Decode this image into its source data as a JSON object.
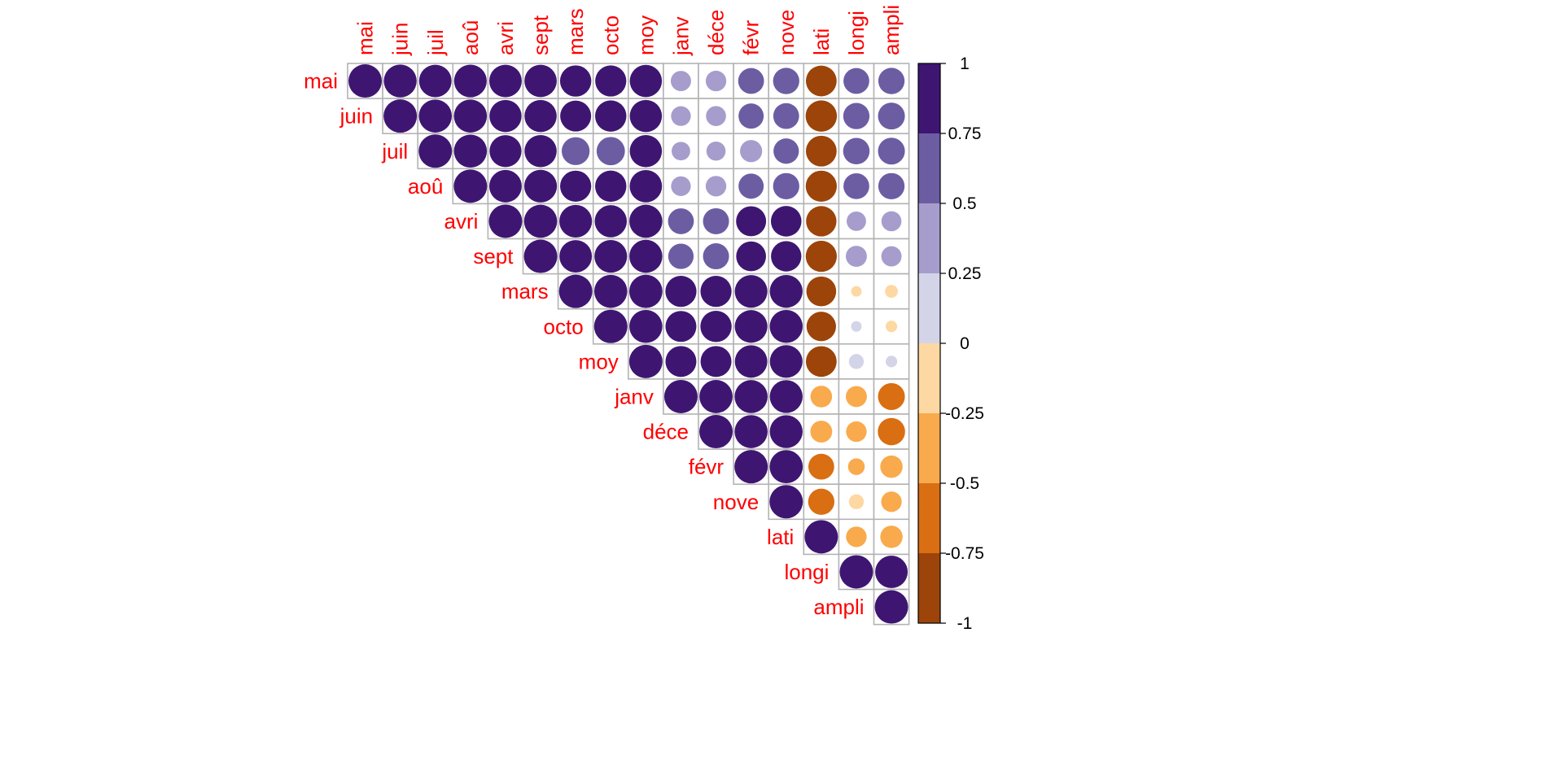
{
  "chart_data": {
    "type": "heatmap",
    "variant": "correlation-matrix-upper-circles",
    "labels": [
      "mai",
      "juin",
      "juil",
      "aoû",
      "avri",
      "sept",
      "mars",
      "octo",
      "moy",
      "janv",
      "déce",
      "févr",
      "nove",
      "lati",
      "longi",
      "ampli"
    ],
    "label_color": "#ff0000",
    "grid_color": "#b3b3b3",
    "values": [
      [
        1,
        0.97,
        0.95,
        0.96,
        0.95,
        0.94,
        0.88,
        0.87,
        0.93,
        0.37,
        0.38,
        0.6,
        0.62,
        -0.85,
        0.6,
        0.62
      ],
      [
        null,
        1,
        0.98,
        0.98,
        0.93,
        0.93,
        0.86,
        0.88,
        0.93,
        0.35,
        0.36,
        0.57,
        0.6,
        -0.88,
        0.62,
        0.65
      ],
      [
        null,
        null,
        1,
        0.98,
        0.92,
        0.93,
        0.7,
        0.72,
        0.93,
        0.31,
        0.33,
        0.44,
        0.58,
        -0.85,
        0.63,
        0.65
      ],
      [
        null,
        null,
        null,
        1,
        0.95,
        0.96,
        0.87,
        0.88,
        0.94,
        0.35,
        0.38,
        0.57,
        0.62,
        -0.87,
        0.6,
        0.62
      ],
      [
        null,
        null,
        null,
        null,
        1,
        0.98,
        0.96,
        0.93,
        0.98,
        0.6,
        0.61,
        0.81,
        0.84,
        -0.83,
        0.34,
        0.36
      ],
      [
        null,
        null,
        null,
        null,
        null,
        1,
        0.95,
        0.96,
        0.98,
        0.58,
        0.61,
        0.8,
        0.83,
        -0.87,
        0.4,
        0.37
      ],
      [
        null,
        null,
        null,
        null,
        null,
        null,
        1,
        0.98,
        0.99,
        0.87,
        0.87,
        0.96,
        0.97,
        -0.8,
        -0.1,
        -0.15
      ],
      [
        null,
        null,
        null,
        null,
        null,
        null,
        null,
        1,
        0.98,
        0.86,
        0.88,
        0.96,
        0.98,
        -0.78,
        0.1,
        -0.12
      ],
      [
        null,
        null,
        null,
        null,
        null,
        null,
        null,
        null,
        1,
        0.86,
        0.86,
        0.95,
        0.96,
        -0.85,
        0.2,
        0.12
      ],
      [
        null,
        null,
        null,
        null,
        null,
        null,
        null,
        null,
        null,
        1,
        0.99,
        0.98,
        0.97,
        -0.42,
        -0.4,
        -0.65
      ],
      [
        null,
        null,
        null,
        null,
        null,
        null,
        null,
        null,
        null,
        null,
        1,
        0.98,
        0.97,
        -0.43,
        -0.38,
        -0.67
      ],
      [
        null,
        null,
        null,
        null,
        null,
        null,
        null,
        null,
        null,
        null,
        null,
        1,
        0.99,
        -0.6,
        -0.25,
        -0.45
      ],
      [
        null,
        null,
        null,
        null,
        null,
        null,
        null,
        null,
        null,
        null,
        null,
        null,
        1,
        -0.62,
        -0.2,
        -0.38
      ],
      [
        null,
        null,
        null,
        null,
        null,
        null,
        null,
        null,
        null,
        null,
        null,
        null,
        null,
        1,
        -0.38,
        -0.45
      ],
      [
        null,
        null,
        null,
        null,
        null,
        null,
        null,
        null,
        null,
        null,
        null,
        null,
        null,
        null,
        1,
        0.95
      ],
      [
        null,
        null,
        null,
        null,
        null,
        null,
        null,
        null,
        null,
        null,
        null,
        null,
        null,
        null,
        null,
        1
      ]
    ],
    "color_scale": {
      "breaks": [
        -1,
        -0.75,
        -0.5,
        -0.25,
        0,
        0.25,
        0.5,
        0.75,
        1
      ],
      "colors": [
        "#9c4409",
        "#d96e13",
        "#f9aa4d",
        "#fdd8a2",
        "#d3d4e8",
        "#a69dcc",
        "#6c5da3",
        "#3e1672"
      ],
      "tick_labels": [
        "1",
        "0.75",
        "0.5",
        "0.25",
        "0",
        "-0.25",
        "-0.5",
        "-0.75",
        "-1"
      ]
    },
    "legend_position": "right"
  }
}
